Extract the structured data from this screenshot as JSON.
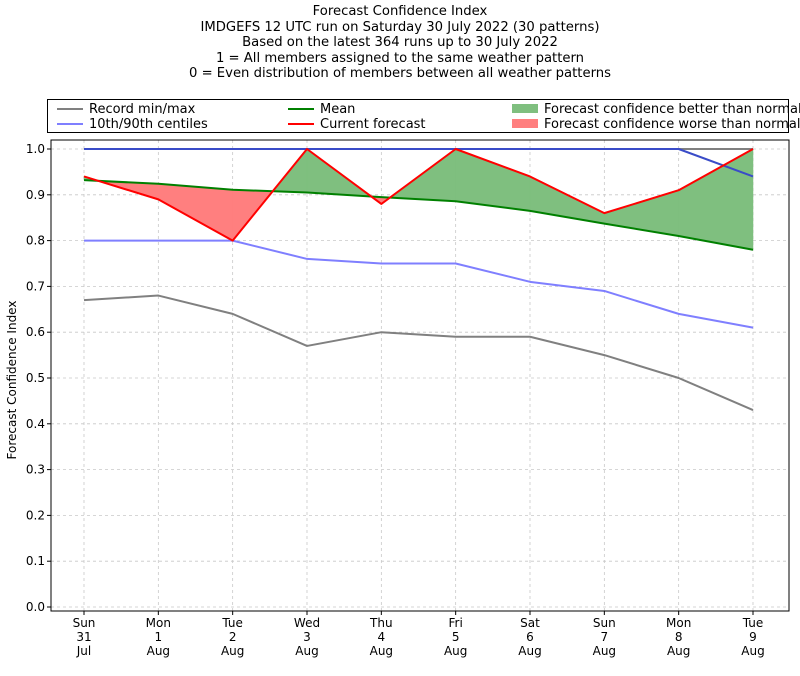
{
  "chart_data": {
    "type": "line",
    "title": "Forecast Confidence Index",
    "subtitle_lines": [
      "IMDGEFS 12 UTC run on Saturday 30 July 2022 (30 patterns)",
      "Based on the latest 364 runs up to 30 July 2022",
      "1 = All members assigned to the same weather pattern",
      "0 = Even distribution of members between all weather patterns"
    ],
    "xlabel": "",
    "ylabel": "Forecast Confidence Index",
    "ylim": [
      0,
      1.0
    ],
    "yticks": [
      "0.0",
      "0.1",
      "0.2",
      "0.3",
      "0.4",
      "0.5",
      "0.6",
      "0.7",
      "0.8",
      "0.9",
      "1.0"
    ],
    "grid": true,
    "legend_position": "top",
    "categories": [
      [
        "Sun",
        "31",
        "Jul"
      ],
      [
        "Mon",
        "1",
        "Aug"
      ],
      [
        "Tue",
        "2",
        "Aug"
      ],
      [
        "Wed",
        "3",
        "Aug"
      ],
      [
        "Thu",
        "4",
        "Aug"
      ],
      [
        "Fri",
        "5",
        "Aug"
      ],
      [
        "Sat",
        "6",
        "Aug"
      ],
      [
        "Sun",
        "7",
        "Aug"
      ],
      [
        "Mon",
        "8",
        "Aug"
      ],
      [
        "Tue",
        "9",
        "Aug"
      ]
    ],
    "series": [
      {
        "name": "Record min/max",
        "color": "#808080",
        "role": "record_min",
        "values": [
          0.67,
          0.68,
          0.64,
          0.57,
          0.6,
          0.59,
          0.59,
          0.55,
          0.5,
          0.43
        ]
      },
      {
        "name": "Record max",
        "color": "#808080",
        "role": "record_max",
        "values": [
          1.0,
          1.0,
          1.0,
          1.0,
          1.0,
          1.0,
          1.0,
          1.0,
          1.0,
          1.0
        ]
      },
      {
        "name": "10th/90th centiles",
        "color": "#7f7fff",
        "role": "p10",
        "values": [
          0.8,
          0.8,
          0.8,
          0.76,
          0.75,
          0.75,
          0.71,
          0.69,
          0.64,
          0.61
        ]
      },
      {
        "name": "90th centile",
        "color": "#3a4cc8",
        "role": "p90",
        "values": [
          1.0,
          1.0,
          1.0,
          1.0,
          1.0,
          1.0,
          1.0,
          1.0,
          1.0,
          0.94
        ]
      },
      {
        "name": "Mean",
        "color": "#008000",
        "role": "mean",
        "values": [
          0.932,
          0.924,
          0.911,
          0.905,
          0.895,
          0.886,
          0.865,
          0.837,
          0.81,
          0.78
        ]
      },
      {
        "name": "Current forecast",
        "color": "#ff0000",
        "role": "current",
        "values": [
          0.94,
          0.89,
          0.8,
          1.0,
          0.88,
          1.0,
          0.94,
          0.86,
          0.91,
          1.0
        ]
      }
    ],
    "fills": [
      {
        "name": "Forecast confidence better than normal",
        "color": "#7fbf7f"
      },
      {
        "name": "Forecast confidence worse than normal",
        "color": "#ff7f7f"
      }
    ]
  }
}
